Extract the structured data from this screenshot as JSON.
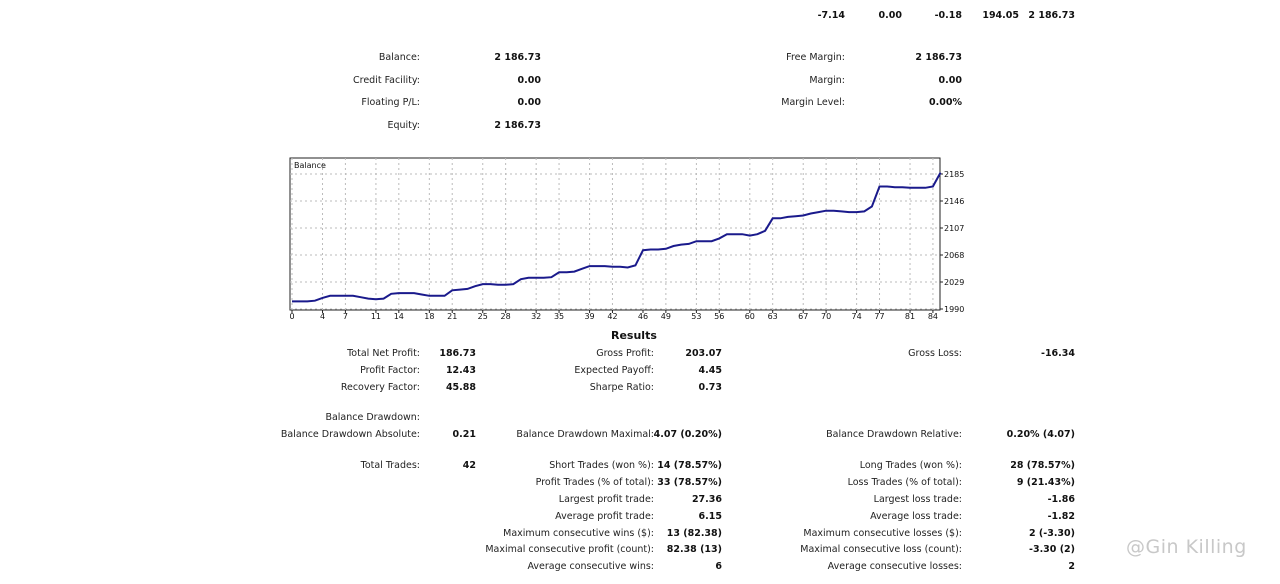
{
  "top_row": [
    "-7.14",
    "0.00",
    "-0.18",
    "194.05",
    "2 186.73"
  ],
  "account": {
    "left": [
      {
        "label": "Balance:",
        "value": "2 186.73"
      },
      {
        "label": "Credit Facility:",
        "value": "0.00"
      },
      {
        "label": "Floating P/L:",
        "value": "0.00"
      },
      {
        "label": "Equity:",
        "value": "2 186.73"
      }
    ],
    "right": [
      {
        "label": "Free Margin:",
        "value": "2 186.73"
      },
      {
        "label": "Margin:",
        "value": "0.00"
      },
      {
        "label": "Margin Level:",
        "value": "0.00%"
      }
    ]
  },
  "chart_data": {
    "type": "line",
    "title": "Balance",
    "series": [
      {
        "name": "Balance",
        "color": "#1a1a8c",
        "values": [
          2001,
          2001,
          2001,
          2002,
          2006,
          2009,
          2009,
          2009,
          2009,
          2007,
          2005,
          2004,
          2005,
          2012,
          2013,
          2013,
          2013,
          2011,
          2009,
          2009,
          2009,
          2017,
          2018,
          2019,
          2023,
          2026,
          2026,
          2025,
          2025,
          2026,
          2033,
          2035,
          2035,
          2035,
          2036,
          2043,
          2043,
          2044,
          2048,
          2052,
          2052,
          2052,
          2051,
          2051,
          2050,
          2053,
          2075,
          2076,
          2076,
          2077,
          2081,
          2083,
          2084,
          2088,
          2088,
          2088,
          2092,
          2098,
          2098,
          2098,
          2096,
          2098,
          2103,
          2121,
          2121,
          2123,
          2124,
          2125,
          2128,
          2130,
          2132,
          2132,
          2131,
          2130,
          2130,
          2131,
          2138,
          2167,
          2167,
          2166,
          2166,
          2165,
          2165,
          2165,
          2167,
          2187
        ]
      }
    ],
    "x_ticks": [
      "0",
      "4",
      "7",
      "11",
      "14",
      "18",
      "21",
      "25",
      "28",
      "32",
      "35",
      "39",
      "42",
      "46",
      "49",
      "53",
      "56",
      "60",
      "63",
      "67",
      "70",
      "74",
      "77",
      "81",
      "84"
    ],
    "y_ticks": [
      "1990",
      "2029",
      "2068",
      "2107",
      "2146",
      "2185"
    ],
    "ylim": [
      1990,
      2185
    ],
    "xlim": [
      0,
      85
    ],
    "grid": true
  },
  "results": {
    "title": "Results",
    "items": [
      {
        "label": "Total Net Profit:",
        "value": "186.73"
      },
      {
        "label": "Gross Profit:",
        "value": "203.07"
      },
      {
        "label": "Gross Loss:",
        "value": "-16.34"
      },
      {
        "label": "Profit Factor:",
        "value": "12.43"
      },
      {
        "label": "Expected Payoff:",
        "value": "4.45"
      },
      {
        "label": "Recovery Factor:",
        "value": "45.88"
      },
      {
        "label": "Sharpe Ratio:",
        "value": "0.73"
      },
      {
        "label": "Balance Drawdown:"
      },
      {
        "label": "Balance Drawdown Absolute:",
        "value": "0.21"
      },
      {
        "label": "Balance Drawdown Maximal:",
        "value": "4.07 (0.20%)"
      },
      {
        "label": "Balance Drawdown Relative:",
        "value": "0.20% (4.07)"
      },
      {
        "label": "Total Trades:",
        "value": "42"
      },
      {
        "label": "Short Trades (won %):",
        "value": "14 (78.57%)"
      },
      {
        "label": "Long Trades (won %):",
        "value": "28 (78.57%)"
      },
      {
        "label": "Profit Trades (% of total):",
        "value": "33 (78.57%)"
      },
      {
        "label": "Loss Trades (% of total):",
        "value": "9 (21.43%)"
      },
      {
        "label": "Largest profit trade:",
        "value": "27.36"
      },
      {
        "label": "Largest loss trade:",
        "value": "-1.86"
      },
      {
        "label": "Average profit trade:",
        "value": "6.15"
      },
      {
        "label": "Average loss trade:",
        "value": "-1.82"
      },
      {
        "label": "Maximum consecutive wins ($):",
        "value": "13 (82.38)"
      },
      {
        "label": "Maximum consecutive losses ($):",
        "value": "2 (-3.30)"
      },
      {
        "label": "Maximal consecutive profit (count):",
        "value": "82.38 (13)"
      },
      {
        "label": "Maximal consecutive loss (count):",
        "value": "-3.30 (2)"
      },
      {
        "label": "Average consecutive wins:",
        "value": "6"
      },
      {
        "label": "Average consecutive losses:",
        "value": "2"
      }
    ]
  },
  "watermark": "@Gin Killing"
}
